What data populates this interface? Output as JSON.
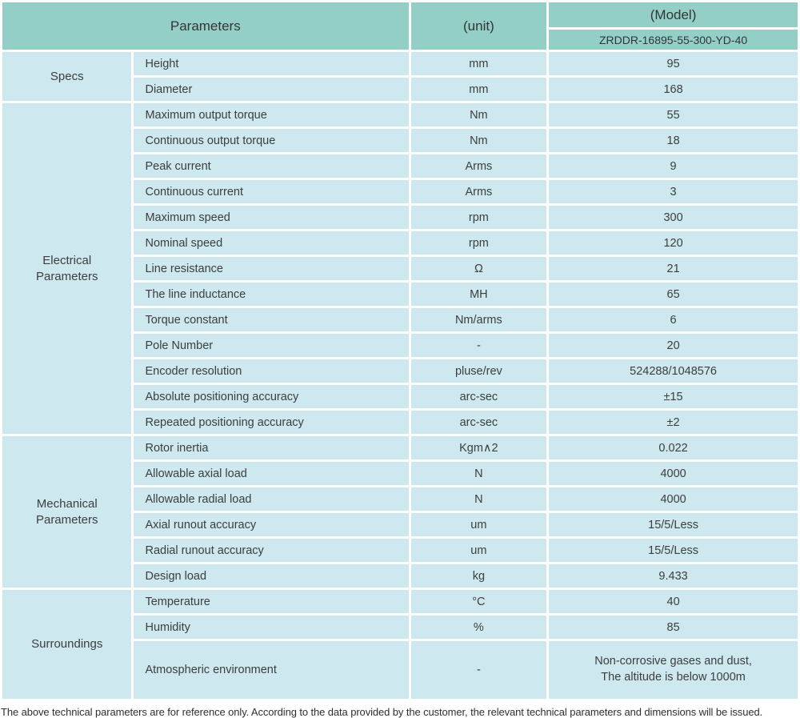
{
  "colors": {
    "header_bg": "#93cfc7",
    "cell_bg": "#cde8ee",
    "grid": "#ffffff",
    "text": "#3e3e3e"
  },
  "table": {
    "header": {
      "parameters_label": "Parameters",
      "unit_label": "(unit)",
      "model_label": "(Model)",
      "model_value": "ZRDDR-16895-55-300-YD-40"
    },
    "groups": [
      {
        "label": "Specs",
        "rows": [
          {
            "param": "Height",
            "unit": "mm",
            "value": "95"
          },
          {
            "param": "Diameter",
            "unit": "mm",
            "value": "168"
          }
        ]
      },
      {
        "label": "Electrical Parameters",
        "rows": [
          {
            "param": "Maximum output torque",
            "unit": "Nm",
            "value": "55"
          },
          {
            "param": "Continuous output torque",
            "unit": "Nm",
            "value": "18"
          },
          {
            "param": "Peak current",
            "unit": "Arms",
            "value": "9"
          },
          {
            "param": "Continuous current",
            "unit": "Arms",
            "value": "3"
          },
          {
            "param": "Maximum speed",
            "unit": "rpm",
            "value": "300"
          },
          {
            "param": "Nominal speed",
            "unit": "rpm",
            "value": "120"
          },
          {
            "param": "Line resistance",
            "unit": "Ω",
            "value": "21"
          },
          {
            "param": "The line inductance",
            "unit": "MH",
            "value": "65"
          },
          {
            "param": "Torque constant",
            "unit": "Nm/arms",
            "value": "6"
          },
          {
            "param": "Pole Number",
            "unit": "-",
            "value": "20"
          },
          {
            "param": "Encoder resolution",
            "unit": "pluse/rev",
            "value": "524288/1048576"
          },
          {
            "param": "Absolute positioning accuracy",
            "unit": "arc-sec",
            "value": "±15"
          },
          {
            "param": "Repeated positioning accuracy",
            "unit": "arc-sec",
            "value": "±2"
          }
        ]
      },
      {
        "label": "Mechanical Parameters",
        "rows": [
          {
            "param": "Rotor inertia",
            "unit": "Kgm∧2",
            "value": "0.022"
          },
          {
            "param": "Allowable axial load",
            "unit": "N",
            "value": "4000"
          },
          {
            "param": "Allowable radial load",
            "unit": "N",
            "value": "4000"
          },
          {
            "param": "Axial runout accuracy",
            "unit": "um",
            "value": "15/5/Less"
          },
          {
            "param": "Radial runout accuracy",
            "unit": "um",
            "value": "15/5/Less"
          },
          {
            "param": "Design load",
            "unit": "kg",
            "value": "9.433"
          }
        ]
      },
      {
        "label": "Surroundings",
        "rows": [
          {
            "param": "Temperature",
            "unit": "°C",
            "value": "40"
          },
          {
            "param": "Humidity",
            "unit": "%",
            "value": "85"
          },
          {
            "param": "Atmospheric environment",
            "unit": "-",
            "value_line1": "Non-corrosive gases and dust,",
            "value_line2": "The altitude is below 1000m"
          }
        ]
      }
    ]
  },
  "footer": {
    "note": "The above technical parameters are for reference only. According to the data provided by the customer, the relevant technical parameters and dimensions will be issued."
  }
}
